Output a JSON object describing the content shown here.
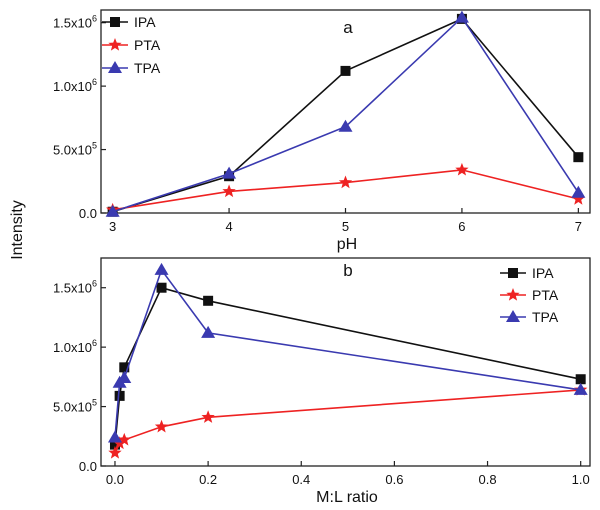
{
  "shared_ylabel": "Intensity",
  "chart_data": [
    {
      "type": "line",
      "panel_letter": "a",
      "title": "",
      "xlabel": "pH",
      "ylabel": "Intensity",
      "xlim": [
        2.9,
        7.1
      ],
      "ylim": [
        0,
        1600000
      ],
      "x_ticks": [
        3,
        4,
        5,
        6,
        7
      ],
      "x_tick_labels": [
        "3",
        "4",
        "5",
        "6",
        "7"
      ],
      "y_ticks": [
        0,
        500000,
        1000000,
        1500000
      ],
      "y_tick_labels": [
        {
          "mantissa": "0.0",
          "exp": ""
        },
        {
          "mantissa": "5.0x10",
          "exp": "5"
        },
        {
          "mantissa": "1.0x10",
          "exp": "6"
        },
        {
          "mantissa": "1.5x10",
          "exp": "6"
        }
      ],
      "legend_position": "top-left",
      "grid": false,
      "series": [
        {
          "name": "IPA",
          "color": "#111111",
          "marker": "square",
          "x": [
            3,
            4,
            5,
            6,
            7
          ],
          "y": [
            10000,
            290000,
            1120000,
            1530000,
            440000
          ]
        },
        {
          "name": "PTA",
          "color": "#ee2222",
          "marker": "star",
          "x": [
            3,
            4,
            5,
            6,
            7
          ],
          "y": [
            25000,
            170000,
            240000,
            340000,
            110000
          ]
        },
        {
          "name": "TPA",
          "color": "#3a3ab0",
          "marker": "triangle",
          "x": [
            3,
            4,
            5,
            6,
            7
          ],
          "y": [
            10000,
            310000,
            680000,
            1540000,
            160000
          ]
        }
      ]
    },
    {
      "type": "line",
      "panel_letter": "b",
      "title": "",
      "xlabel": "M:L ratio",
      "ylabel": "Intensity",
      "xlim": [
        -0.03,
        1.02
      ],
      "ylim": [
        0,
        1750000
      ],
      "x_ticks": [
        0.0,
        0.2,
        0.4,
        0.6,
        0.8,
        1.0
      ],
      "x_tick_labels": [
        "0.0",
        "0.2",
        "0.4",
        "0.6",
        "0.8",
        "1.0"
      ],
      "y_ticks": [
        0,
        500000,
        1000000,
        1500000
      ],
      "y_tick_labels": [
        {
          "mantissa": "0.0",
          "exp": ""
        },
        {
          "mantissa": "5.0x10",
          "exp": "5"
        },
        {
          "mantissa": "1.0x10",
          "exp": "6"
        },
        {
          "mantissa": "1.5x10",
          "exp": "6"
        }
      ],
      "legend_position": "top-right",
      "grid": false,
      "series": [
        {
          "name": "IPA",
          "color": "#111111",
          "marker": "square",
          "x": [
            0.0,
            0.01,
            0.02,
            0.1,
            0.2,
            1.0
          ],
          "y": [
            180000,
            590000,
            830000,
            1500000,
            1390000,
            730000
          ]
        },
        {
          "name": "PTA",
          "color": "#ee2222",
          "marker": "star",
          "x": [
            0.0,
            0.01,
            0.02,
            0.1,
            0.2,
            1.0
          ],
          "y": [
            110000,
            190000,
            220000,
            330000,
            410000,
            640000
          ]
        },
        {
          "name": "TPA",
          "color": "#3a3ab0",
          "marker": "triangle",
          "x": [
            0.0,
            0.01,
            0.02,
            0.1,
            0.2,
            1.0
          ],
          "y": [
            240000,
            700000,
            740000,
            1650000,
            1120000,
            640000
          ]
        }
      ]
    }
  ]
}
